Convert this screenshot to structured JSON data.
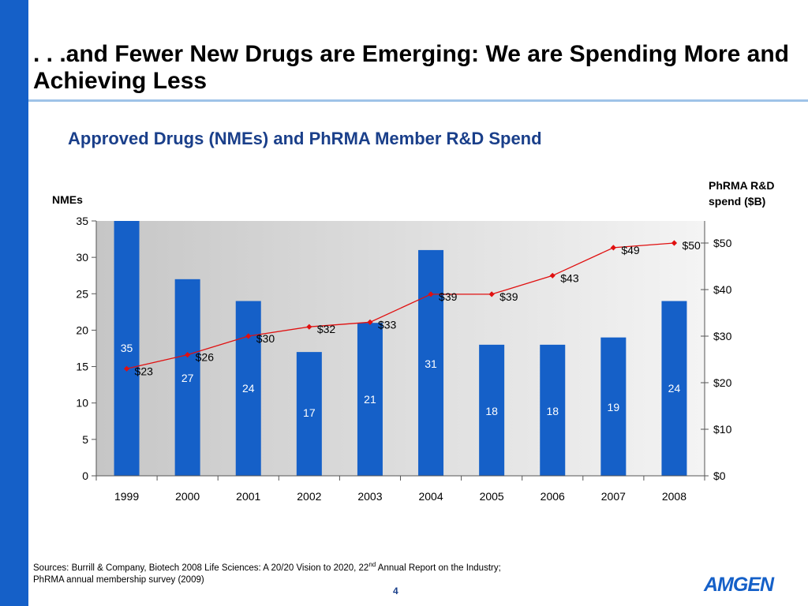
{
  "slide": {
    "title": ". . .and Fewer New Drugs are Emerging: We are Spending More and Achieving Less",
    "page_number": "4",
    "sources_line1_pre": "Sources: Burrill & Company, Biotech 2008 Life Sciences: A 20/20 Vision to 2020, 22",
    "sources_line1_sup": "nd",
    "sources_line1_post": " Annual Report on the Industry;",
    "sources_line2": "PhRMA annual membership survey (2009)",
    "logo_text": "AMGEN"
  },
  "chart_data": {
    "type": "bar",
    "title": "Approved Drugs (NMEs) and PhRMA Member R&D Spend",
    "categories": [
      "1999",
      "2000",
      "2001",
      "2002",
      "2003",
      "2004",
      "2005",
      "2006",
      "2007",
      "2008"
    ],
    "series": [
      {
        "name": "NMEs",
        "type": "bar",
        "axis": "left",
        "values": [
          35,
          27,
          24,
          17,
          21,
          31,
          18,
          18,
          19,
          24
        ],
        "labels": [
          "35",
          "27",
          "24",
          "17",
          "21",
          "31",
          "18",
          "18",
          "19",
          "24"
        ]
      },
      {
        "name": "PhRMA R&D spend",
        "type": "line",
        "axis": "right",
        "values": [
          23,
          26,
          30,
          32,
          33,
          39,
          39,
          43,
          49,
          50
        ],
        "labels": [
          "$23",
          "$26",
          "$30",
          "$32",
          "$33",
          "$39",
          "$39",
          "$43",
          "$49",
          "$50"
        ]
      }
    ],
    "y_left": {
      "label": "NMEs",
      "ylim": [
        0,
        35
      ],
      "ticks": [
        "0",
        "5",
        "10",
        "15",
        "20",
        "25",
        "30",
        "35"
      ]
    },
    "y_right": {
      "label_line1": "PhRMA R&D",
      "label_line2": "spend ($B)",
      "ylim": [
        0,
        55
      ],
      "ticks": [
        "$0",
        "$10",
        "$20",
        "$30",
        "$40",
        "$50"
      ]
    },
    "colors": {
      "bar": "#1560c8",
      "line": "#e01010",
      "bar_label": "#ffffff",
      "background_dark": "#c8c8c8",
      "background_light": "#f2f2f2"
    },
    "grid": false,
    "legend": "none"
  }
}
